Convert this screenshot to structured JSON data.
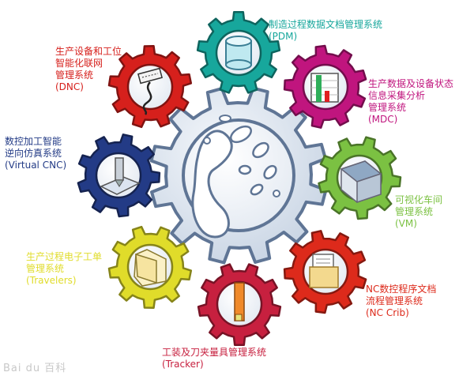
{
  "colors": {
    "center": "#8da2bd",
    "pdm": "#17a79c",
    "mdc": "#c0157e",
    "vm": "#7bc142",
    "nccrib": "#dd2a1b",
    "tracker": "#c7203f",
    "travelers": "#e0dc2a",
    "virtualcnc": "#233b86",
    "dnc": "#d6201c"
  },
  "labels": {
    "pdm": [
      "制造过程数据文档管理系统",
      "(PDM)"
    ],
    "mdc": [
      "生产数据及设备状态",
      "信息采集分析",
      "管理系统",
      "(MDC)"
    ],
    "vm": [
      "可视化车间",
      "管理系统",
      "(VM)"
    ],
    "nccrib": [
      "NC数控程序文档",
      "流程管理系统",
      "(NC Crib)"
    ],
    "tracker": [
      "工装及刀夹量具管理系统",
      "(Tracker)"
    ],
    "travelers": [
      "生产过程电子工单",
      "管理系统",
      "(Travelers)"
    ],
    "virtualcnc": [
      "数控加工智能",
      "逆向仿真系统",
      "(Virtual CNC)"
    ],
    "dnc": [
      "生产设备和工位",
      "智能化联网",
      "管理系统",
      "(DNC)"
    ]
  },
  "icons": {
    "center": "water-splash-icon",
    "pdm": "database-cylinder-icon",
    "mdc": "bar-chart-icon",
    "vm": "factory-building-icon",
    "nccrib": "file-box-icon",
    "tracker": "cutting-tool-icon",
    "travelers": "folder-icon",
    "virtualcnc": "cnc-machine-icon",
    "dnc": "network-connector-icon"
  },
  "watermark": "Bai du 百科"
}
